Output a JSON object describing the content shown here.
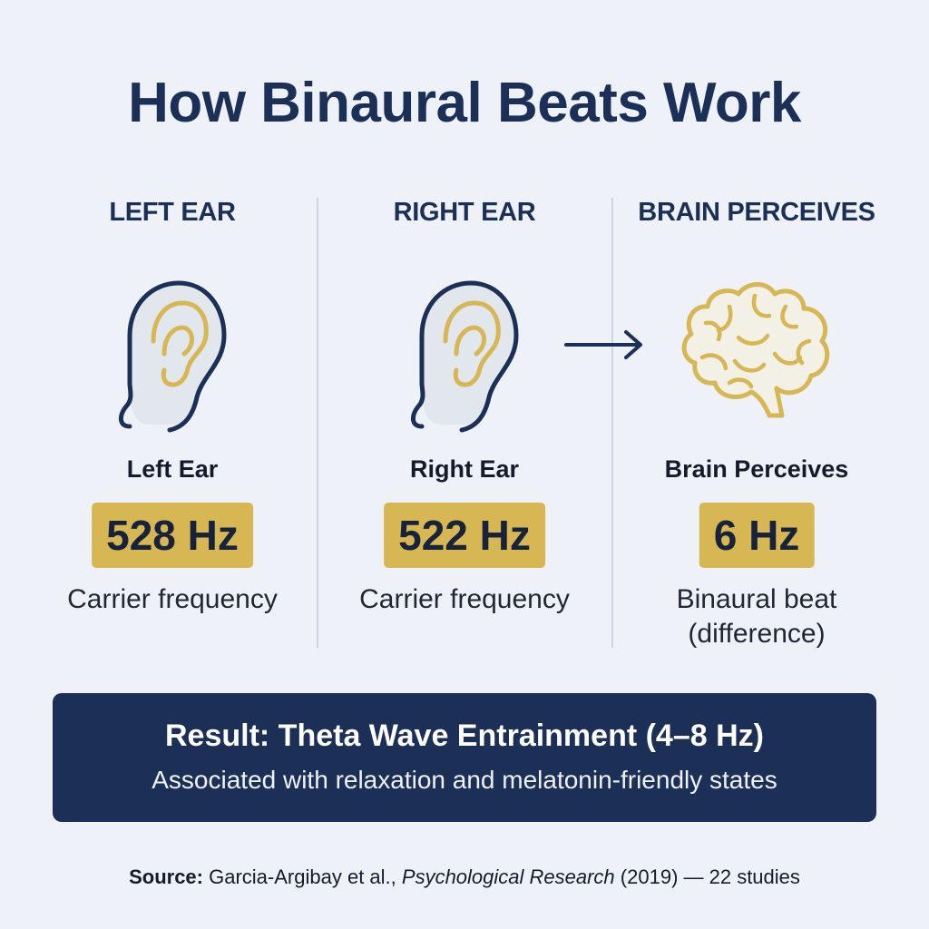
{
  "title": "How Binaural Beats Work",
  "columns": [
    {
      "heading": "LEFT EAR",
      "icon": "ear-icon",
      "label": "Left Ear",
      "value": "528 Hz",
      "caption": "Carrier frequency"
    },
    {
      "heading": "RIGHT EAR",
      "icon": "ear-icon",
      "label": "Right Ear",
      "value": "522 Hz",
      "caption": "Carrier frequency"
    },
    {
      "heading": "BRAIN PERCEIVES",
      "icon": "brain-icon",
      "label": "Brain Perceives",
      "value": "6 Hz",
      "caption_line1": "Binaural beat",
      "caption_line2": "(difference)"
    }
  ],
  "arrow_icon": "arrow-right-icon",
  "result": {
    "title": "Result: Theta Wave Entrainment (4–8 Hz)",
    "subtitle": "Associated with relaxation and melatonin-friendly states"
  },
  "source": {
    "label": "Source:",
    "authors": "Garcia-Argibay et al.,",
    "journal": "Psychological Research",
    "details": "(2019) — 22 studies"
  },
  "colors": {
    "navy": "#1b2f57",
    "gold": "#d7b654",
    "background": "#eef2f8"
  }
}
